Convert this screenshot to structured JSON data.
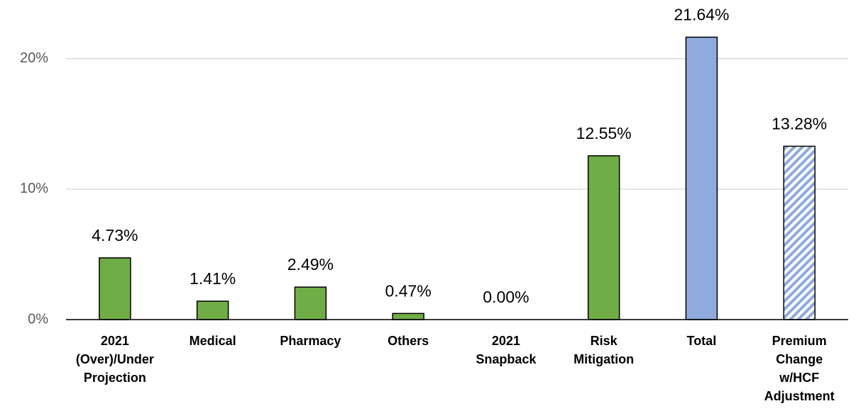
{
  "chart_data": {
    "type": "bar",
    "categories": [
      [
        "2021",
        "(Over)/Under",
        "Projection"
      ],
      [
        "Medical"
      ],
      [
        "Pharmacy"
      ],
      [
        "Others"
      ],
      [
        "2021",
        "Snapback"
      ],
      [
        "Risk",
        "Mitigation"
      ],
      [
        "Total"
      ],
      [
        "Premium",
        "Change",
        "w/HCF",
        "Adjustment"
      ]
    ],
    "values": [
      4.73,
      1.41,
      2.49,
      0.47,
      0.0,
      12.55,
      21.64,
      13.28
    ],
    "value_labels": [
      "4.73%",
      "1.41%",
      "2.49%",
      "0.47%",
      "0.00%",
      "12.55%",
      "21.64%",
      "13.28%"
    ],
    "colors": [
      "#70ad47",
      "#70ad47",
      "#70ad47",
      "#70ad47",
      "#70ad47",
      "#70ad47",
      "#8faadc",
      "#8faadc"
    ],
    "styles": [
      "solid",
      "solid",
      "solid",
      "solid",
      "solid",
      "solid",
      "solid",
      "hatched"
    ],
    "ylim": [
      0,
      24
    ],
    "yticks": [
      {
        "value": 0,
        "label": "0%"
      },
      {
        "value": 10,
        "label": "10%"
      },
      {
        "value": 20,
        "label": "20%"
      }
    ],
    "grid": true
  }
}
